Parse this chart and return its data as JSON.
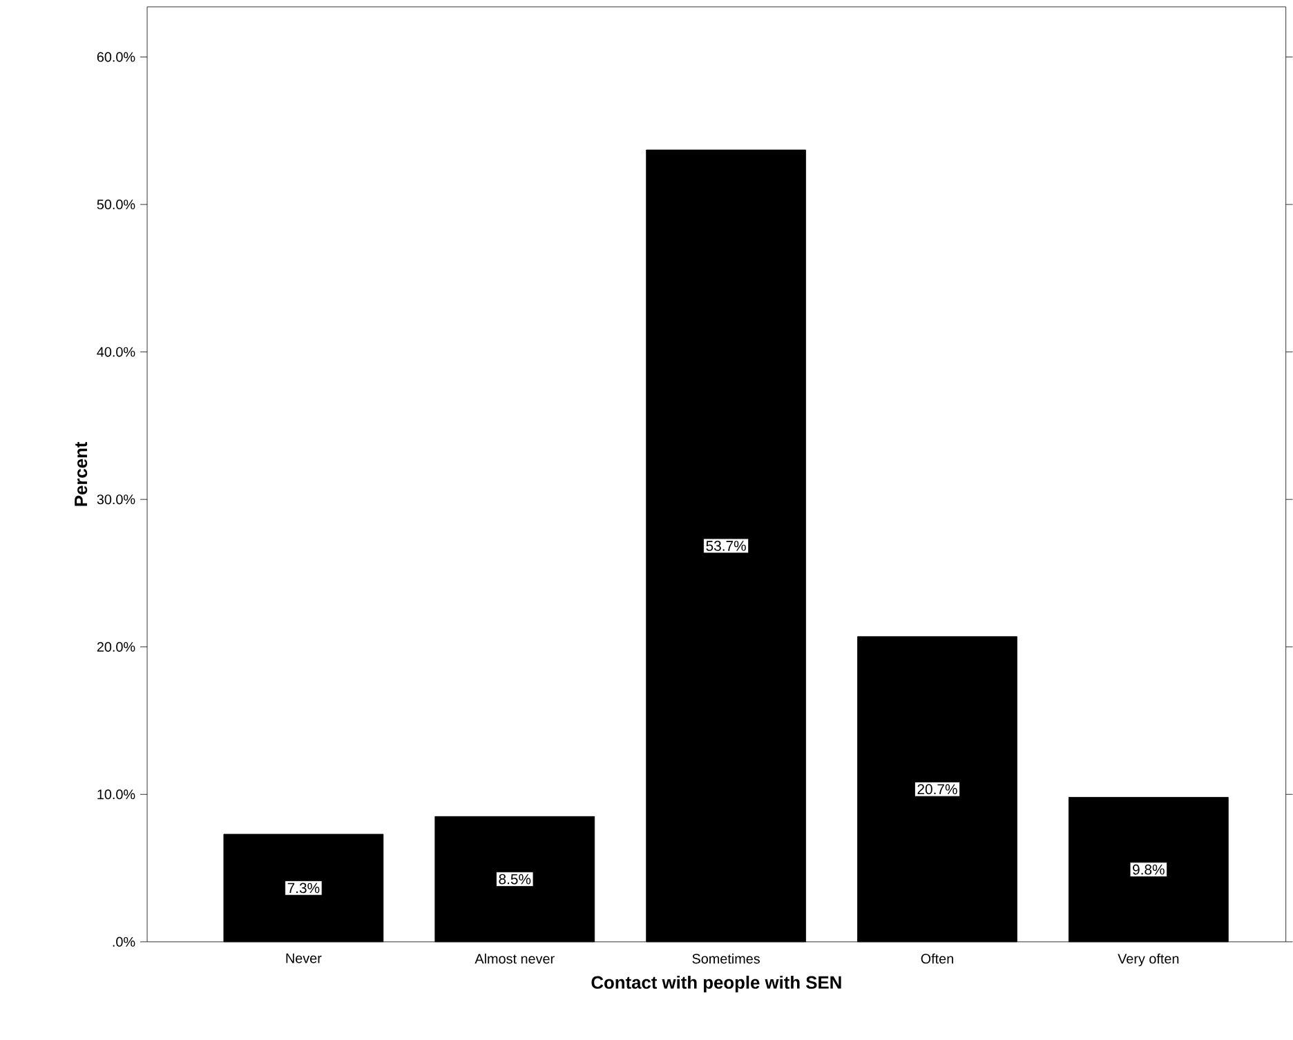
{
  "chart_data": {
    "type": "bar",
    "xlabel": "Contact with people with SEN",
    "ylabel": "Percent",
    "categories": [
      "Never",
      "Almost never",
      "Sometimes",
      "Often",
      "Very often"
    ],
    "values": [
      7.3,
      8.5,
      53.7,
      20.7,
      9.8
    ],
    "value_labels": [
      "7.3%",
      "8.5%",
      "53.7%",
      "20.7%",
      "9.8%"
    ],
    "color": "#000000",
    "ylim": [
      0,
      63.4
    ],
    "yticks": [
      {
        "value": 0,
        "label": ".0%"
      },
      {
        "value": 10,
        "label": "10.0%"
      },
      {
        "value": 20,
        "label": "20.0%"
      },
      {
        "value": 30,
        "label": "30.0%"
      },
      {
        "value": 40,
        "label": "40.0%"
      },
      {
        "value": 50,
        "label": "50.0%"
      },
      {
        "value": 60,
        "label": "60.0%"
      }
    ]
  }
}
